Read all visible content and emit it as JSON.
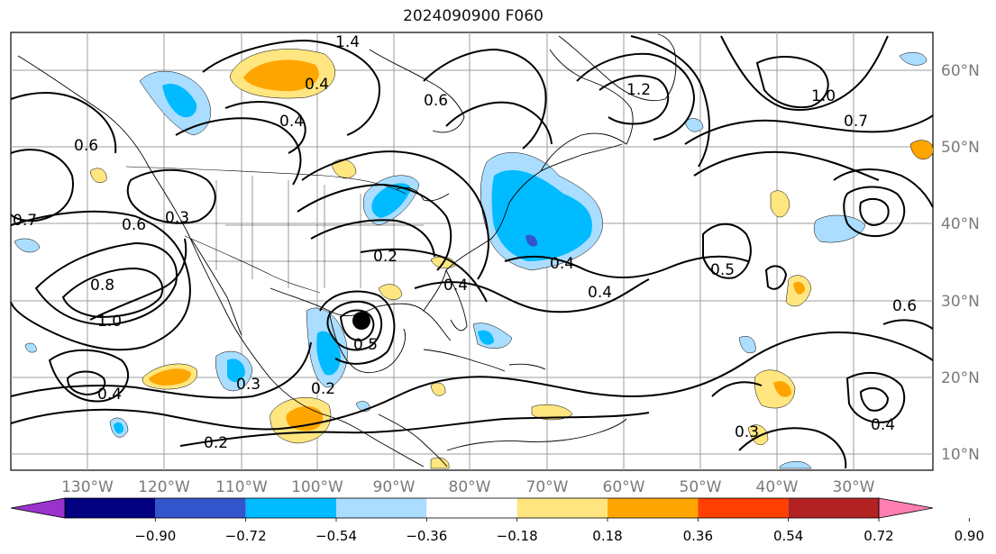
{
  "title": "2024090900 F060",
  "map": {
    "lon_labels": [
      "130°W",
      "120°W",
      "110°W",
      "100°W",
      "90°W",
      "80°W",
      "70°W",
      "60°W",
      "50°W",
      "40°W",
      "30°W"
    ],
    "lat_labels": [
      "60°N",
      "50°N",
      "40°N",
      "30°N",
      "20°N",
      "10°N"
    ],
    "contour_labels": [
      "0.2",
      "0.3",
      "0.4",
      "0.5",
      "0.6",
      "0.7",
      "0.8",
      "1.0",
      "1.2",
      "1.4"
    ],
    "colors": {
      "land_outline": "#000000",
      "grid": "#9e9e9e",
      "contour": "#000000",
      "storm_marker": "#000000"
    }
  },
  "colorbar": {
    "tick_labels": [
      "−0.90",
      "−0.72",
      "−0.54",
      "−0.36",
      "−0.18",
      "0.18",
      "0.36",
      "0.54",
      "0.72",
      "0.90"
    ],
    "colors": [
      "#9933cc",
      "#000080",
      "#3355cc",
      "#00bbff",
      "#aaddff",
      "#ffffff",
      "#ffe680",
      "#ffa500",
      "#ff4000",
      "#b22222",
      "#ff80b0"
    ]
  }
}
